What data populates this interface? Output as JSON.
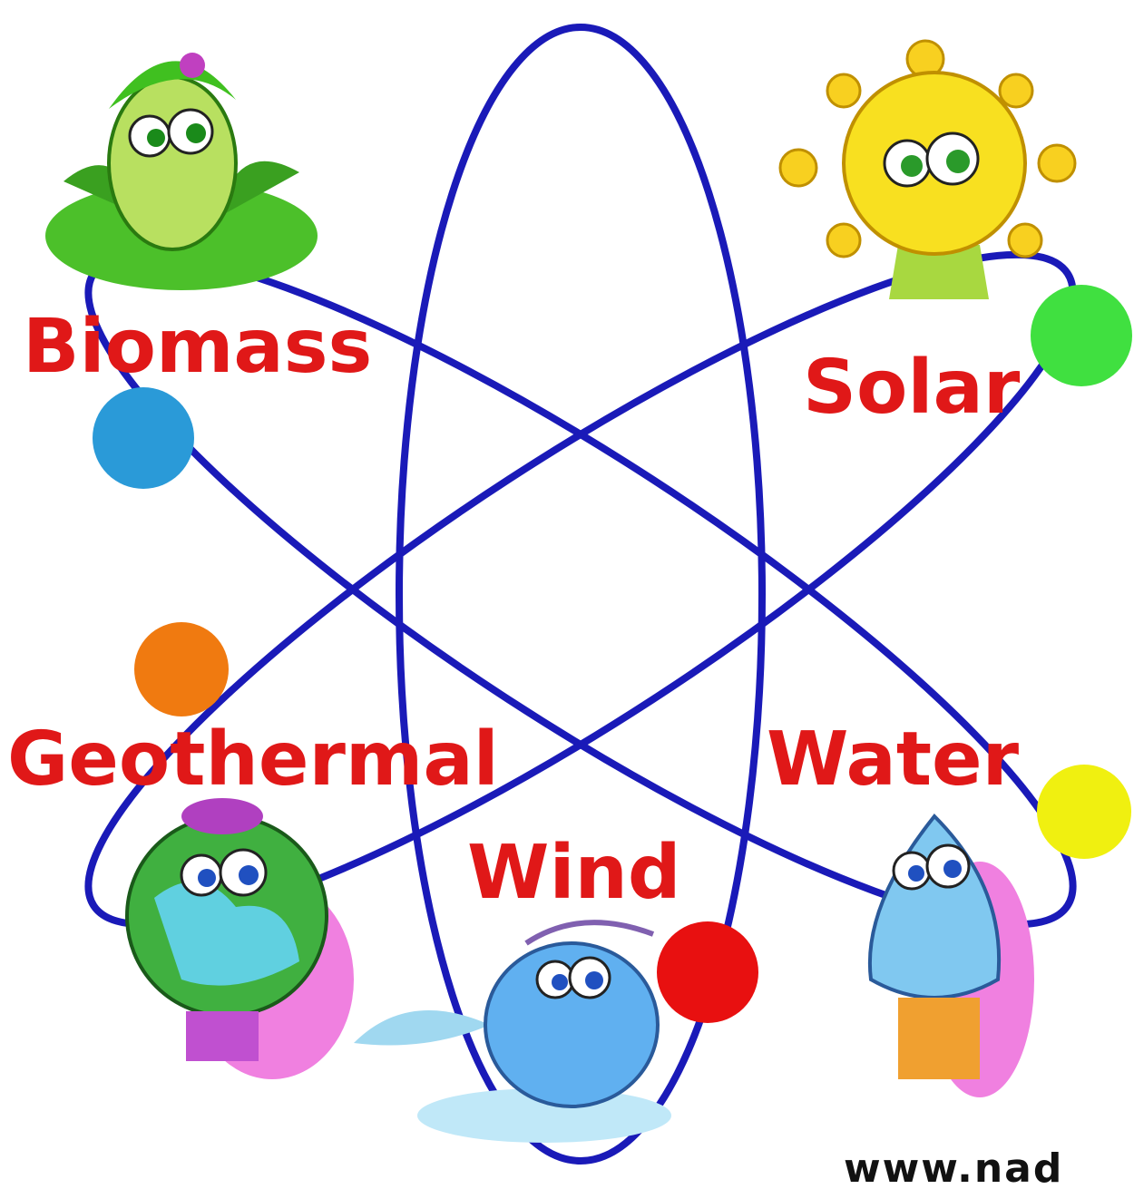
{
  "labels": {
    "biomass": "Biomass",
    "solar": "Solar",
    "geothermal": "Geothermal",
    "water": "Water",
    "wind": "Wind"
  },
  "watermark": "www.nad"
}
